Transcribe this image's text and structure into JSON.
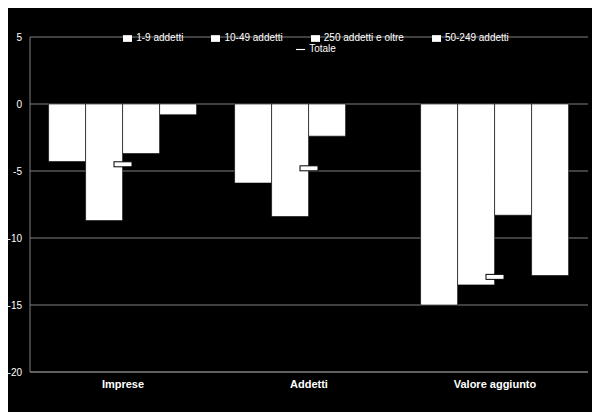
{
  "chart_data": {
    "type": "bar",
    "categories": [
      "Imprese",
      "Addetti",
      "Valore aggiunto"
    ],
    "series": [
      {
        "name": "1-9 addetti",
        "color": "#ffffff",
        "values": [
          -4.3,
          -5.9,
          -15.0
        ]
      },
      {
        "name": "10-49 addetti",
        "color": "#ffffff",
        "values": [
          -8.7,
          -8.4,
          -13.5
        ]
      },
      {
        "name": "50-249 addetti",
        "color": "#ffffff",
        "values": [
          -3.7,
          -2.4,
          -8.3
        ]
      },
      {
        "name": "250 addetti e oltre",
        "color": "#ffffff",
        "values": [
          -0.8,
          0,
          -12.8
        ]
      },
      {
        "name": "Totale",
        "type": "marker",
        "marker": "dash",
        "color": "#ffffff",
        "values": [
          -4.5,
          -4.8,
          -12.9
        ]
      }
    ],
    "ylim": [
      -20,
      5
    ],
    "yticks": [
      -20,
      -15,
      -10,
      -5,
      0,
      5
    ],
    "grid": true,
    "legend": "top"
  }
}
